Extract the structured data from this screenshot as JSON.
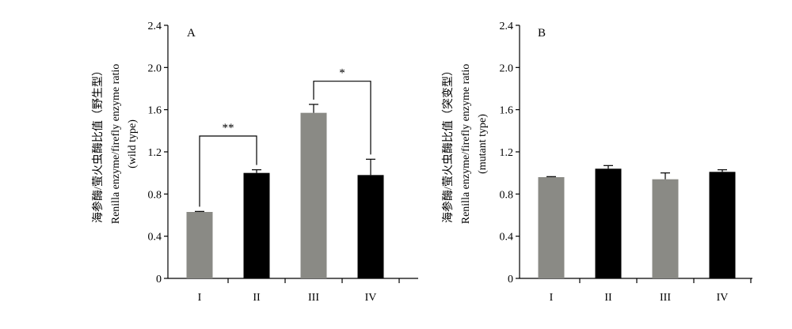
{
  "chart_data": [
    {
      "type": "bar",
      "panel_label": "A",
      "categories": [
        "I",
        "II",
        "III",
        "IV"
      ],
      "values": [
        0.63,
        1.0,
        1.57,
        0.98
      ],
      "errors": [
        0.005,
        0.03,
        0.08,
        0.15
      ],
      "bar_colors": [
        "#8a8a85",
        "#000000",
        "#8a8a85",
        "#000000"
      ],
      "ylabel_lines": [
        "海参酶/萤火虫酶比值（野生型）",
        "Renilla enzyme/firefly enzyme ratio",
        "(wild type)"
      ],
      "ylim": [
        0,
        2.4
      ],
      "yticks": [
        "0",
        "0.4",
        "0.8",
        "1.2",
        "1.6",
        "2.0",
        "2.4"
      ],
      "significance": [
        {
          "from": 0,
          "to": 1,
          "label": "**",
          "level": 1.35
        },
        {
          "from": 2,
          "to": 3,
          "label": "*",
          "level": 1.87
        }
      ]
    },
    {
      "type": "bar",
      "panel_label": "B",
      "categories": [
        "I",
        "II",
        "III",
        "IV"
      ],
      "values": [
        0.96,
        1.04,
        0.94,
        1.01
      ],
      "errors": [
        0.005,
        0.03,
        0.06,
        0.02
      ],
      "bar_colors": [
        "#8a8a85",
        "#000000",
        "#8a8a85",
        "#000000"
      ],
      "ylabel_lines": [
        "海参酶/萤火虫酶比值（突变型）",
        "Renilla enzyme/firefly enzyme ratio",
        "(mutant type)"
      ],
      "ylim": [
        0,
        2.4
      ],
      "yticks": [
        "0",
        "0.4",
        "0.8",
        "1.2",
        "1.6",
        "2.0",
        "2.4"
      ],
      "significance": []
    }
  ]
}
